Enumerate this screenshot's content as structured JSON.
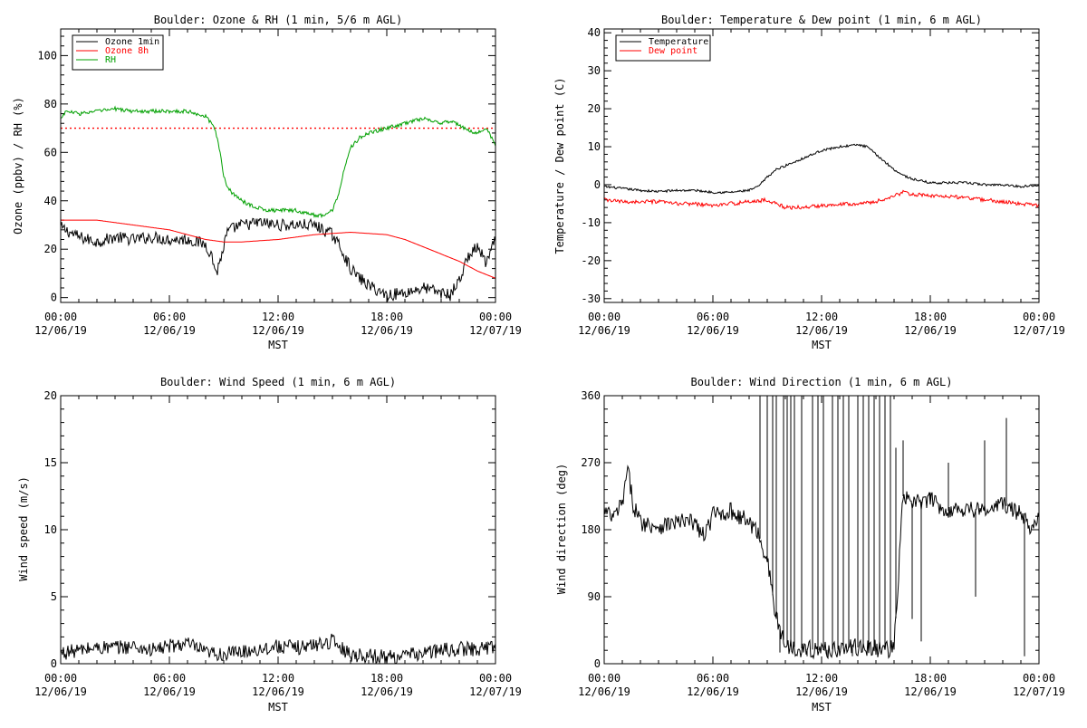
{
  "chart_data": [
    {
      "type": "line",
      "title": "Boulder: Ozone & RH (1 min, 5/6 m AGL)",
      "ylabel": "Ozone (ppbv) / RH (%)",
      "xlabel": "MST",
      "xlim": [
        0,
        24
      ],
      "ylim": [
        -2,
        111
      ],
      "x_ticks": [
        {
          "x": 0,
          "label": "00:00",
          "date": "12/06/19"
        },
        {
          "x": 6,
          "label": "06:00",
          "date": "12/06/19"
        },
        {
          "x": 12,
          "label": "12:00",
          "date": "12/06/19"
        },
        {
          "x": 18,
          "label": "18:00",
          "date": "12/06/19"
        },
        {
          "x": 24,
          "label": "00:00",
          "date": "12/07/19"
        }
      ],
      "y_ticks": [
        0,
        20,
        40,
        60,
        80,
        100
      ],
      "legend": {
        "placement": "top-left",
        "entries": [
          "Ozone 1min",
          "Ozone 8h",
          "RH"
        ]
      },
      "series": [
        {
          "name": "Ozone 1min",
          "color": "#000000",
          "noise": 2.5,
          "x": [
            0,
            0.5,
            1,
            1.5,
            2,
            3,
            4,
            5,
            6,
            7,
            8,
            8.3,
            8.6,
            8.9,
            9.2,
            9.6,
            10,
            11,
            12,
            13,
            14,
            14.5,
            15,
            15.5,
            16,
            16.5,
            17,
            17.5,
            18,
            19,
            20,
            20.5,
            21,
            21.5,
            22,
            22.5,
            23,
            23.5,
            24
          ],
          "y": [
            29,
            27,
            25,
            24,
            23,
            25,
            24,
            25,
            24,
            24,
            22,
            18,
            10,
            18,
            27,
            29,
            30,
            31,
            30,
            30,
            30,
            28,
            26,
            20,
            12,
            8,
            5,
            3,
            1,
            2,
            4,
            3,
            2,
            1,
            7,
            17,
            21,
            14,
            24
          ]
        },
        {
          "name": "Ozone 8h",
          "color": "#ff0000",
          "noise": 0,
          "x": [
            0,
            2,
            4,
            6,
            7,
            8,
            9,
            10,
            11,
            12,
            13,
            14,
            15,
            16,
            17,
            18,
            19,
            20,
            21,
            22,
            23,
            24
          ],
          "y": [
            32,
            32,
            30,
            28,
            26,
            24,
            23,
            23,
            23.5,
            24,
            25,
            26,
            26.5,
            27,
            26.5,
            26,
            24,
            21,
            18,
            15,
            11,
            8
          ]
        },
        {
          "name": "RH",
          "color": "#00a000",
          "noise": 0.8,
          "x": [
            0,
            0.3,
            1,
            2,
            3,
            4,
            5,
            6,
            7,
            8,
            8.5,
            8.8,
            9,
            9.2,
            9.5,
            10,
            10.5,
            11,
            11.5,
            12,
            13,
            14,
            14.5,
            15,
            15.3,
            15.7,
            16,
            16.5,
            17,
            18,
            19,
            19.5,
            20,
            20.5,
            21,
            21.5,
            22,
            22.5,
            23,
            23.5,
            24
          ],
          "y": [
            74,
            77,
            76,
            77,
            78,
            77,
            77,
            77,
            77,
            75,
            70,
            60,
            50,
            46,
            43,
            40,
            38,
            37,
            36,
            36,
            36,
            34,
            34,
            36,
            42,
            55,
            62,
            66,
            68,
            70,
            72,
            73,
            74,
            73,
            72,
            73,
            71,
            69,
            68,
            70,
            63
          ]
        }
      ],
      "reference_lines": [
        {
          "y": 70,
          "color": "#ff0000",
          "style": "dotted"
        }
      ]
    },
    {
      "type": "line",
      "title": "Boulder: Temperature & Dew point (1 min, 6 m AGL)",
      "ylabel": "Temperature / Dew point (C)",
      "xlabel": "MST",
      "xlim": [
        0,
        24
      ],
      "ylim": [
        -31,
        41
      ],
      "x_ticks": [
        {
          "x": 0,
          "label": "00:00",
          "date": "12/06/19"
        },
        {
          "x": 6,
          "label": "06:00",
          "date": "12/06/19"
        },
        {
          "x": 12,
          "label": "12:00",
          "date": "12/06/19"
        },
        {
          "x": 18,
          "label": "18:00",
          "date": "12/06/19"
        },
        {
          "x": 24,
          "label": "00:00",
          "date": "12/07/19"
        }
      ],
      "y_ticks": [
        -30,
        -20,
        -10,
        0,
        10,
        20,
        30,
        40
      ],
      "legend": {
        "placement": "top-left",
        "entries": [
          "Temperature",
          "Dew point"
        ]
      },
      "series": [
        {
          "name": "Temperature",
          "color": "#000000",
          "noise": 0.3,
          "x": [
            0,
            1,
            2,
            3,
            4,
            5,
            6,
            7,
            8,
            8.5,
            9,
            9.5,
            10,
            11,
            12,
            13,
            14,
            14.5,
            15,
            15.5,
            16,
            16.5,
            17,
            18,
            19,
            20,
            21,
            22,
            23,
            24
          ],
          "y": [
            -0.5,
            -1,
            -1.5,
            -1.8,
            -1.5,
            -1.5,
            -2,
            -2,
            -1.5,
            -0.5,
            2,
            4,
            5,
            7,
            9,
            10,
            10.5,
            10,
            8,
            6,
            4,
            2.5,
            1.5,
            0.5,
            0.5,
            0.5,
            0,
            0,
            -0.5,
            0
          ]
        },
        {
          "name": "Dew point",
          "color": "#ff0000",
          "noise": 0.5,
          "x": [
            0,
            1,
            2,
            3,
            4,
            5,
            6,
            7,
            8,
            9,
            10,
            11,
            12,
            13,
            14,
            15,
            16,
            16.5,
            17,
            18,
            19,
            20,
            21,
            22,
            23,
            24
          ],
          "y": [
            -4,
            -4.5,
            -4.5,
            -4.5,
            -5,
            -5,
            -5.5,
            -5,
            -4.5,
            -4,
            -6,
            -6,
            -5.5,
            -5,
            -5,
            -4.5,
            -3,
            -2,
            -2.5,
            -3,
            -3,
            -3.5,
            -4,
            -4.5,
            -5,
            -5.5
          ]
        }
      ]
    },
    {
      "type": "line",
      "title": "Boulder: Wind Speed (1 min, 6 m AGL)",
      "ylabel": "Wind speed (m/s)",
      "xlabel": "MST",
      "xlim": [
        0,
        24
      ],
      "ylim": [
        0,
        20
      ],
      "x_ticks": [
        {
          "x": 0,
          "label": "00:00",
          "date": "12/06/19"
        },
        {
          "x": 6,
          "label": "06:00",
          "date": "12/06/19"
        },
        {
          "x": 12,
          "label": "12:00",
          "date": "12/06/19"
        },
        {
          "x": 18,
          "label": "18:00",
          "date": "12/06/19"
        },
        {
          "x": 24,
          "label": "00:00",
          "date": "12/07/19"
        }
      ],
      "y_ticks": [
        0,
        5,
        10,
        15,
        20
      ],
      "series": [
        {
          "name": "",
          "color": "#000000",
          "noise": 0.55,
          "x": [
            0,
            1,
            2,
            3,
            4,
            5,
            6,
            7,
            8,
            9,
            10,
            11,
            12,
            13,
            14,
            15,
            16,
            17,
            18,
            19,
            20,
            21,
            22,
            23,
            24
          ],
          "y": [
            0.8,
            1,
            1.2,
            1.2,
            1.3,
            1,
            1.3,
            1.5,
            0.8,
            0.7,
            0.9,
            1.1,
            1.3,
            1.2,
            1.4,
            1.7,
            0.7,
            0.6,
            0.5,
            0.6,
            0.8,
            1,
            1.1,
            1.1,
            1.3
          ]
        }
      ]
    },
    {
      "type": "line",
      "title": "Boulder: Wind Direction (1 min, 6 m AGL)",
      "ylabel": "Wind direction (deg)",
      "xlabel": "MST",
      "xlim": [
        0,
        24
      ],
      "ylim": [
        0,
        360
      ],
      "x_ticks": [
        {
          "x": 0,
          "label": "00:00",
          "date": "12/06/19"
        },
        {
          "x": 6,
          "label": "06:00",
          "date": "12/06/19"
        },
        {
          "x": 12,
          "label": "12:00",
          "date": "12/06/19"
        },
        {
          "x": 18,
          "label": "18:00",
          "date": "12/06/19"
        },
        {
          "x": 24,
          "label": "00:00",
          "date": "12/07/19"
        }
      ],
      "y_ticks": [
        0,
        90,
        180,
        270,
        360
      ],
      "series": [
        {
          "name": "",
          "color": "#000000",
          "noise": 12,
          "x": [
            0,
            0.5,
            1,
            1.3,
            1.6,
            2,
            3,
            4,
            5,
            5.5,
            6,
            7,
            8,
            8.5,
            9,
            9.5,
            10,
            11,
            12,
            13,
            14,
            15,
            16,
            16.5,
            17,
            18,
            19,
            20,
            21,
            22,
            23,
            23.5,
            24
          ],
          "y": [
            205,
            195,
            215,
            260,
            215,
            190,
            185,
            190,
            190,
            170,
            200,
            205,
            190,
            175,
            140,
            60,
            25,
            20,
            18,
            20,
            22,
            20,
            20,
            225,
            215,
            220,
            205,
            210,
            205,
            215,
            200,
            185,
            200
          ]
        }
      ],
      "spikes": {
        "x": [
          8.6,
          9,
          9.3,
          9.5,
          9.7,
          9.9,
          10.1,
          10.3,
          10.5,
          10.9,
          11.2,
          11.5,
          11.8,
          12.1,
          12.3,
          12.6,
          12.9,
          13.2,
          13.5,
          13.7,
          14,
          14.3,
          14.6,
          14.9,
          15.2,
          15.5,
          15.8,
          16.1,
          16.5,
          17,
          17.5,
          18,
          19,
          20.5,
          21,
          22.2,
          23.2
        ],
        "y": [
          360,
          360,
          360,
          360,
          15,
          360,
          360,
          360,
          360,
          360,
          10,
          360,
          360,
          360,
          10,
          360,
          360,
          360,
          360,
          10,
          360,
          360,
          360,
          360,
          360,
          360,
          360,
          290,
          300,
          60,
          30,
          230,
          270,
          90,
          300,
          330,
          10
        ]
      }
    }
  ]
}
